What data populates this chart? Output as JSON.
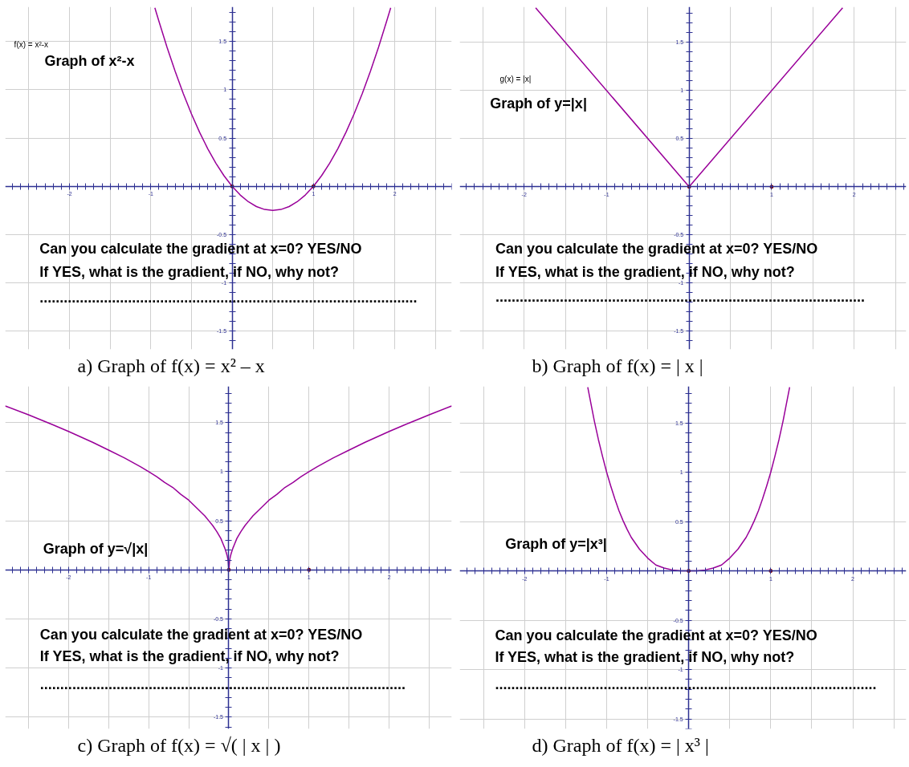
{
  "chart_data": [
    {
      "type": "line",
      "title": "a) Graph of f(x) = x² – x",
      "annotations": [
        "f(x) = x²-x",
        "Graph of x²-x",
        "Can you calculate the gradient at x=0? YES/NO",
        "If YES, what is the gradient, if NO, why not?",
        ".............................................................................................."
      ],
      "series": [
        {
          "color": "#990099",
          "x": [
            -0.95,
            -0.9,
            -0.8,
            -0.7,
            -0.6,
            -0.5,
            -0.4,
            -0.3,
            -0.2,
            -0.1,
            0,
            0.1,
            0.2,
            0.3,
            0.4,
            0.5,
            0.6,
            0.7,
            0.8,
            0.9,
            1,
            1.1,
            1.2,
            1.3,
            1.4,
            1.5,
            1.6,
            1.7,
            1.8,
            1.9,
            1.95
          ],
          "values": [
            1.85,
            1.71,
            1.44,
            1.19,
            0.96,
            0.75,
            0.56,
            0.39,
            0.24,
            0.11,
            0,
            -0.09,
            -0.16,
            -0.21,
            -0.24,
            -0.25,
            -0.24,
            -0.21,
            -0.16,
            -0.09,
            0,
            0.11,
            0.24,
            0.39,
            0.56,
            0.75,
            0.96,
            1.19,
            1.44,
            1.71,
            1.85
          ]
        },
        {
          "type": "scatter",
          "color": "#800000",
          "marker": "circle",
          "x": [
            0,
            1
          ],
          "values": [
            0,
            0
          ]
        }
      ],
      "xlim": [
        -2.79,
        2.7
      ],
      "ylim": [
        -1.69,
        1.86
      ],
      "xticks": [
        {
          "value": -2.5,
          "label": null
        },
        -2,
        {
          "value": -1.5,
          "label": null
        },
        -1,
        {
          "value": -0.5,
          "label": null
        },
        {
          "value": 0.5,
          "label": null
        },
        1,
        {
          "value": 1.5,
          "label": null
        },
        2,
        {
          "value": 2.5,
          "label": null
        }
      ],
      "yticks": [
        -1.5,
        -1,
        -0.5,
        0.5,
        1,
        1.5
      ],
      "grid": true
    },
    {
      "type": "line",
      "title": "b) Graph of f(x) = | x |",
      "annotations": [
        "g(x) = |x|",
        "Graph of y=|x|",
        "Can you calculate the gradient at x=0? YES/NO",
        "If YES, what is the gradient, if NO, why not?",
        "............................................................................................"
      ],
      "series": [
        {
          "color": "#990099",
          "x": [
            -1.86,
            0,
            1.86
          ],
          "values": [
            1.86,
            0,
            1.86
          ]
        },
        {
          "type": "scatter",
          "color": "#800000",
          "marker": "circle",
          "x": [
            0,
            1
          ],
          "values": [
            0,
            0
          ]
        }
      ],
      "xlim": [
        -2.78,
        2.63
      ],
      "ylim": [
        -1.69,
        1.87
      ],
      "xticks": [
        {
          "value": -2.5,
          "label": null
        },
        -2,
        {
          "value": -1.5,
          "label": null
        },
        -1,
        {
          "value": -0.5,
          "label": null
        },
        {
          "value": 0.5,
          "label": null
        },
        1,
        {
          "value": 1.5,
          "label": null
        },
        2,
        {
          "value": 2.5,
          "label": null
        }
      ],
      "yticks": [
        -1.5,
        -1,
        -0.5,
        0.5,
        1,
        1.5
      ],
      "grid": true
    },
    {
      "type": "line",
      "title": "c) Graph of f(x) = √( | x | )",
      "annotations": [
        "Graph of y=√|x|",
        "Can you calculate the gradient at x=0? YES/NO",
        "If YES, what is the gradient, if NO, why not?",
        "..........................................................................................."
      ],
      "series": [
        {
          "color": "#990099",
          "x": [
            -2.79,
            -2.5,
            -2.2,
            -2,
            -1.7,
            -1.5,
            -1.3,
            -1.1,
            -1,
            -0.9,
            -0.8,
            -0.7,
            -0.6,
            -0.5,
            -0.4,
            -0.3,
            -0.25,
            -0.2,
            -0.15,
            -0.1,
            -0.07,
            -0.05,
            -0.03,
            -0.02,
            -0.01,
            0,
            0.01,
            0.02,
            0.03,
            0.05,
            0.07,
            0.1,
            0.15,
            0.2,
            0.25,
            0.3,
            0.4,
            0.5,
            0.6,
            0.7,
            0.8,
            0.9,
            1,
            1.1,
            1.3,
            1.5,
            1.7,
            2,
            2.2,
            2.5,
            2.78
          ],
          "values": [
            1.67,
            1.58,
            1.48,
            1.41,
            1.3,
            1.22,
            1.14,
            1.05,
            1,
            0.95,
            0.89,
            0.84,
            0.77,
            0.71,
            0.63,
            0.55,
            0.5,
            0.45,
            0.39,
            0.32,
            0.26,
            0.22,
            0.17,
            0.14,
            0.1,
            0,
            0.1,
            0.14,
            0.17,
            0.22,
            0.26,
            0.32,
            0.39,
            0.45,
            0.5,
            0.55,
            0.63,
            0.71,
            0.77,
            0.84,
            0.89,
            0.95,
            1,
            1.05,
            1.14,
            1.22,
            1.3,
            1.41,
            1.48,
            1.58,
            1.67
          ]
        },
        {
          "type": "scatter",
          "color": "#800000",
          "marker": "circle",
          "x": [
            0,
            1
          ],
          "values": [
            0,
            0
          ]
        }
      ],
      "xlim": [
        -2.79,
        2.78
      ],
      "ylim": [
        -1.62,
        1.87
      ],
      "xticks": [
        {
          "value": -2.5,
          "label": null
        },
        -2,
        {
          "value": -1.5,
          "label": null
        },
        -1,
        {
          "value": -0.5,
          "label": null
        },
        {
          "value": 0.5,
          "label": null
        },
        1,
        {
          "value": 1.5,
          "label": null
        },
        2,
        {
          "value": 2.5,
          "label": null
        }
      ],
      "yticks": [
        -1.5,
        -1,
        -0.5,
        0.5,
        1,
        1.5
      ],
      "grid": true
    },
    {
      "type": "line",
      "title": "d) Graph of f(x) = | x³ |",
      "annotations": [
        "Graph of y=|x³|",
        "Can you calculate the gradient at x=0? YES/NO",
        "If YES, what is the gradient, if NO, why not?",
        "..............................................................................................."
      ],
      "series": [
        {
          "color": "#990099",
          "x": [
            -1.23,
            -1.15,
            -1.1,
            -1.05,
            -1,
            -0.95,
            -0.9,
            -0.85,
            -0.8,
            -0.75,
            -0.7,
            -0.6,
            -0.5,
            -0.4,
            -0.3,
            -0.2,
            -0.1,
            0,
            0.1,
            0.2,
            0.3,
            0.4,
            0.5,
            0.6,
            0.7,
            0.75,
            0.8,
            0.85,
            0.9,
            0.95,
            1,
            1.05,
            1.1,
            1.15,
            1.23
          ],
          "values": [
            1.86,
            1.52,
            1.33,
            1.16,
            1,
            0.86,
            0.73,
            0.61,
            0.51,
            0.42,
            0.34,
            0.22,
            0.13,
            0.06,
            0.03,
            0.01,
            0,
            0,
            0,
            0.01,
            0.03,
            0.06,
            0.13,
            0.22,
            0.34,
            0.42,
            0.51,
            0.61,
            0.73,
            0.86,
            1,
            1.16,
            1.33,
            1.52,
            1.86
          ]
        },
        {
          "type": "scatter",
          "color": "#800000",
          "marker": "circle",
          "x": [
            0,
            1
          ],
          "values": [
            0,
            0
          ]
        }
      ],
      "xlim": [
        -2.79,
        2.65
      ],
      "ylim": [
        -1.6,
        1.87
      ],
      "xticks": [
        {
          "value": -2.5,
          "label": null
        },
        -2,
        {
          "value": -1.5,
          "label": null
        },
        -1,
        {
          "value": -0.5,
          "label": null
        },
        {
          "value": 0.5,
          "label": null
        },
        1,
        {
          "value": 1.5,
          "label": null
        },
        2,
        {
          "value": 2.5,
          "label": null
        }
      ],
      "yticks": [
        -1.5,
        -1,
        -0.5,
        0.5,
        1,
        1.5
      ],
      "grid": true
    }
  ]
}
